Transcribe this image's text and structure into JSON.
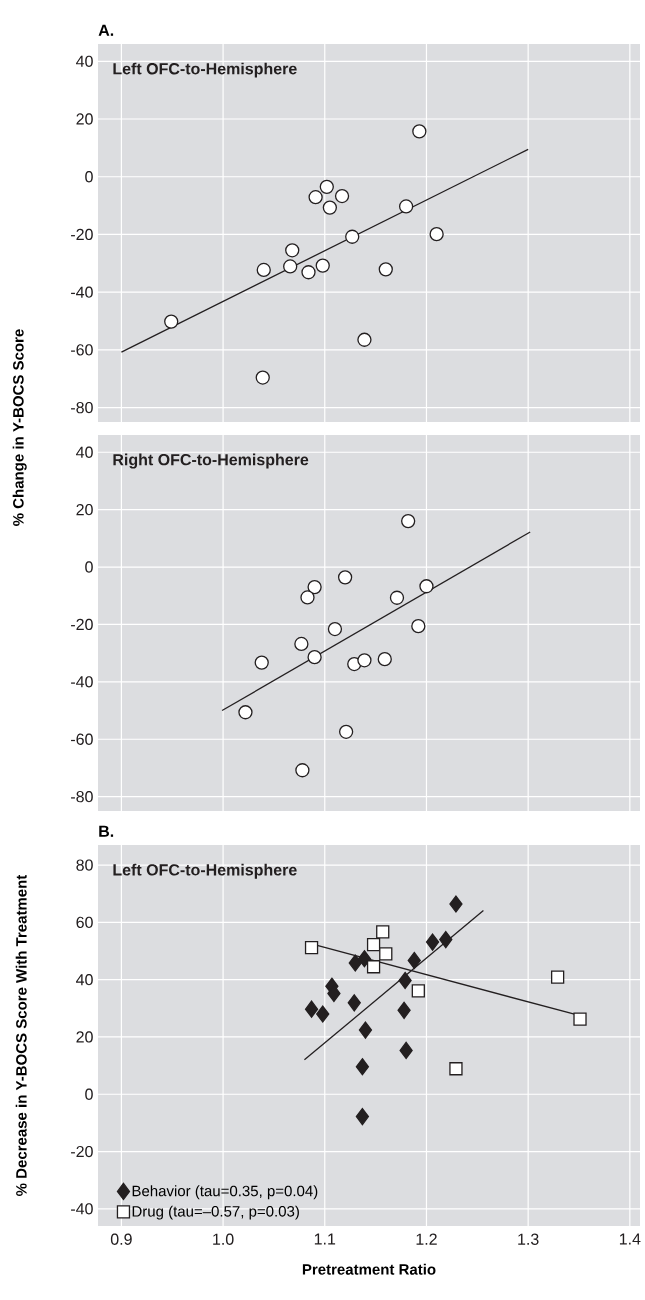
{
  "chart_data": [
    {
      "type": "scatter",
      "title": "A.",
      "subtitle": "Left OFC-to-Hemisphere",
      "ylabel": "% Change in Y-BOCS Score",
      "xlim": [
        0.877,
        1.41
      ],
      "ylim": [
        -85,
        46
      ],
      "xticks": [
        0.9,
        1.0,
        1.1,
        1.2,
        1.3,
        1.4
      ],
      "yticks": [
        -80,
        -60,
        -40,
        -20,
        0,
        20,
        40
      ],
      "tick_labels": "y",
      "grid": true,
      "series": [
        {
          "marker": "circle",
          "color": "#ffffff",
          "x": [
            0.949,
            1.04,
            1.039,
            1.068,
            1.066,
            1.084,
            1.098,
            1.091,
            1.102,
            1.105,
            1.117,
            1.127,
            1.139,
            1.16,
            1.18,
            1.193,
            1.21
          ],
          "values": [
            -50.2,
            -32.3,
            -69.6,
            -25.5,
            -31.1,
            -33.1,
            -30.8,
            -7.1,
            -3.5,
            -10.7,
            -6.7,
            -20.8,
            -56.5,
            -32.1,
            -10.3,
            15.7,
            -19.9
          ]
        },
        {
          "type": "line",
          "marker": "none",
          "color": "#231f20",
          "x": [
            0.9,
            1.3
          ],
          "values": [
            -60.8,
            9.5
          ]
        }
      ]
    },
    {
      "type": "scatter",
      "subtitle": "Right OFC-to-Hemisphere",
      "xlim": [
        0.877,
        1.41
      ],
      "ylim": [
        -85,
        46
      ],
      "xticks": [
        0.9,
        1.0,
        1.1,
        1.2,
        1.3,
        1.4
      ],
      "yticks": [
        -80,
        -60,
        -40,
        -20,
        0,
        20,
        40
      ],
      "tick_labels": "y",
      "grid": true,
      "series": [
        {
          "marker": "circle",
          "color": "#ffffff",
          "x": [
            1.022,
            1.038,
            1.077,
            1.09,
            1.09,
            1.083,
            1.078,
            1.11,
            1.12,
            1.121,
            1.129,
            1.139,
            1.159,
            1.171,
            1.182,
            1.192,
            1.2
          ],
          "values": [
            -50.6,
            -33.3,
            -26.8,
            -31.4,
            -7.0,
            -10.6,
            -70.8,
            -21.6,
            -3.6,
            -57.4,
            -33.8,
            -32.5,
            -32.1,
            -10.7,
            16.0,
            -20.6,
            -6.7
          ]
        },
        {
          "type": "line",
          "marker": "none",
          "color": "#231f20",
          "x": [
            0.999,
            1.302
          ],
          "values": [
            -50.0,
            12.2
          ]
        }
      ]
    },
    {
      "type": "scatter",
      "title": "B.",
      "subtitle": "Left OFC-to-Hemisphere",
      "xlabel": "Pretreatment Ratio",
      "ylabel": "% Decrease in Y-BOCS Score With Treatment",
      "xlim": [
        0.877,
        1.41
      ],
      "ylim": [
        -46,
        87
      ],
      "xticks": [
        0.9,
        {
          "value": 1.0,
          "label": "1.0"
        },
        1.1,
        1.2,
        1.3,
        1.4
      ],
      "yticks": [
        -40,
        -20,
        0,
        20,
        40,
        60,
        80
      ],
      "grid": true,
      "legend": "bottom left",
      "series": [
        {
          "name": "Behavior (tau=0.35, p=0.04)",
          "marker": "diamond",
          "color": "#231f20",
          "x": [
            1.087,
            1.098,
            1.107,
            1.109,
            1.129,
            1.13,
            1.139,
            1.14,
            1.137,
            1.137,
            1.179,
            1.178,
            1.18,
            1.188,
            1.206,
            1.219,
            1.229
          ],
          "values": [
            29.7,
            28.0,
            37.7,
            35.2,
            31.9,
            45.8,
            47.3,
            22.4,
            9.6,
            -7.8,
            39.7,
            29.3,
            15.3,
            46.7,
            53.1,
            54.0,
            66.4
          ]
        },
        {
          "name": "Drug (tau=–0.57, p=0.03)",
          "marker": "square",
          "color": "#ffffff",
          "x": [
            1.087,
            1.157,
            1.148,
            1.16,
            1.148,
            1.192,
            1.229,
            1.329,
            1.351
          ],
          "values": [
            51.2,
            56.7,
            52.2,
            49.0,
            44.5,
            36.1,
            8.9,
            40.9,
            26.2
          ]
        },
        {
          "type": "line",
          "marker": "none",
          "color": "#231f20",
          "x": [
            1.08,
            1.256
          ],
          "values": [
            12.0,
            64.1
          ]
        },
        {
          "type": "line",
          "marker": "none",
          "color": "#231f20",
          "x": [
            1.087,
            1.351
          ],
          "values": [
            52.5,
            27.4
          ]
        }
      ]
    }
  ]
}
